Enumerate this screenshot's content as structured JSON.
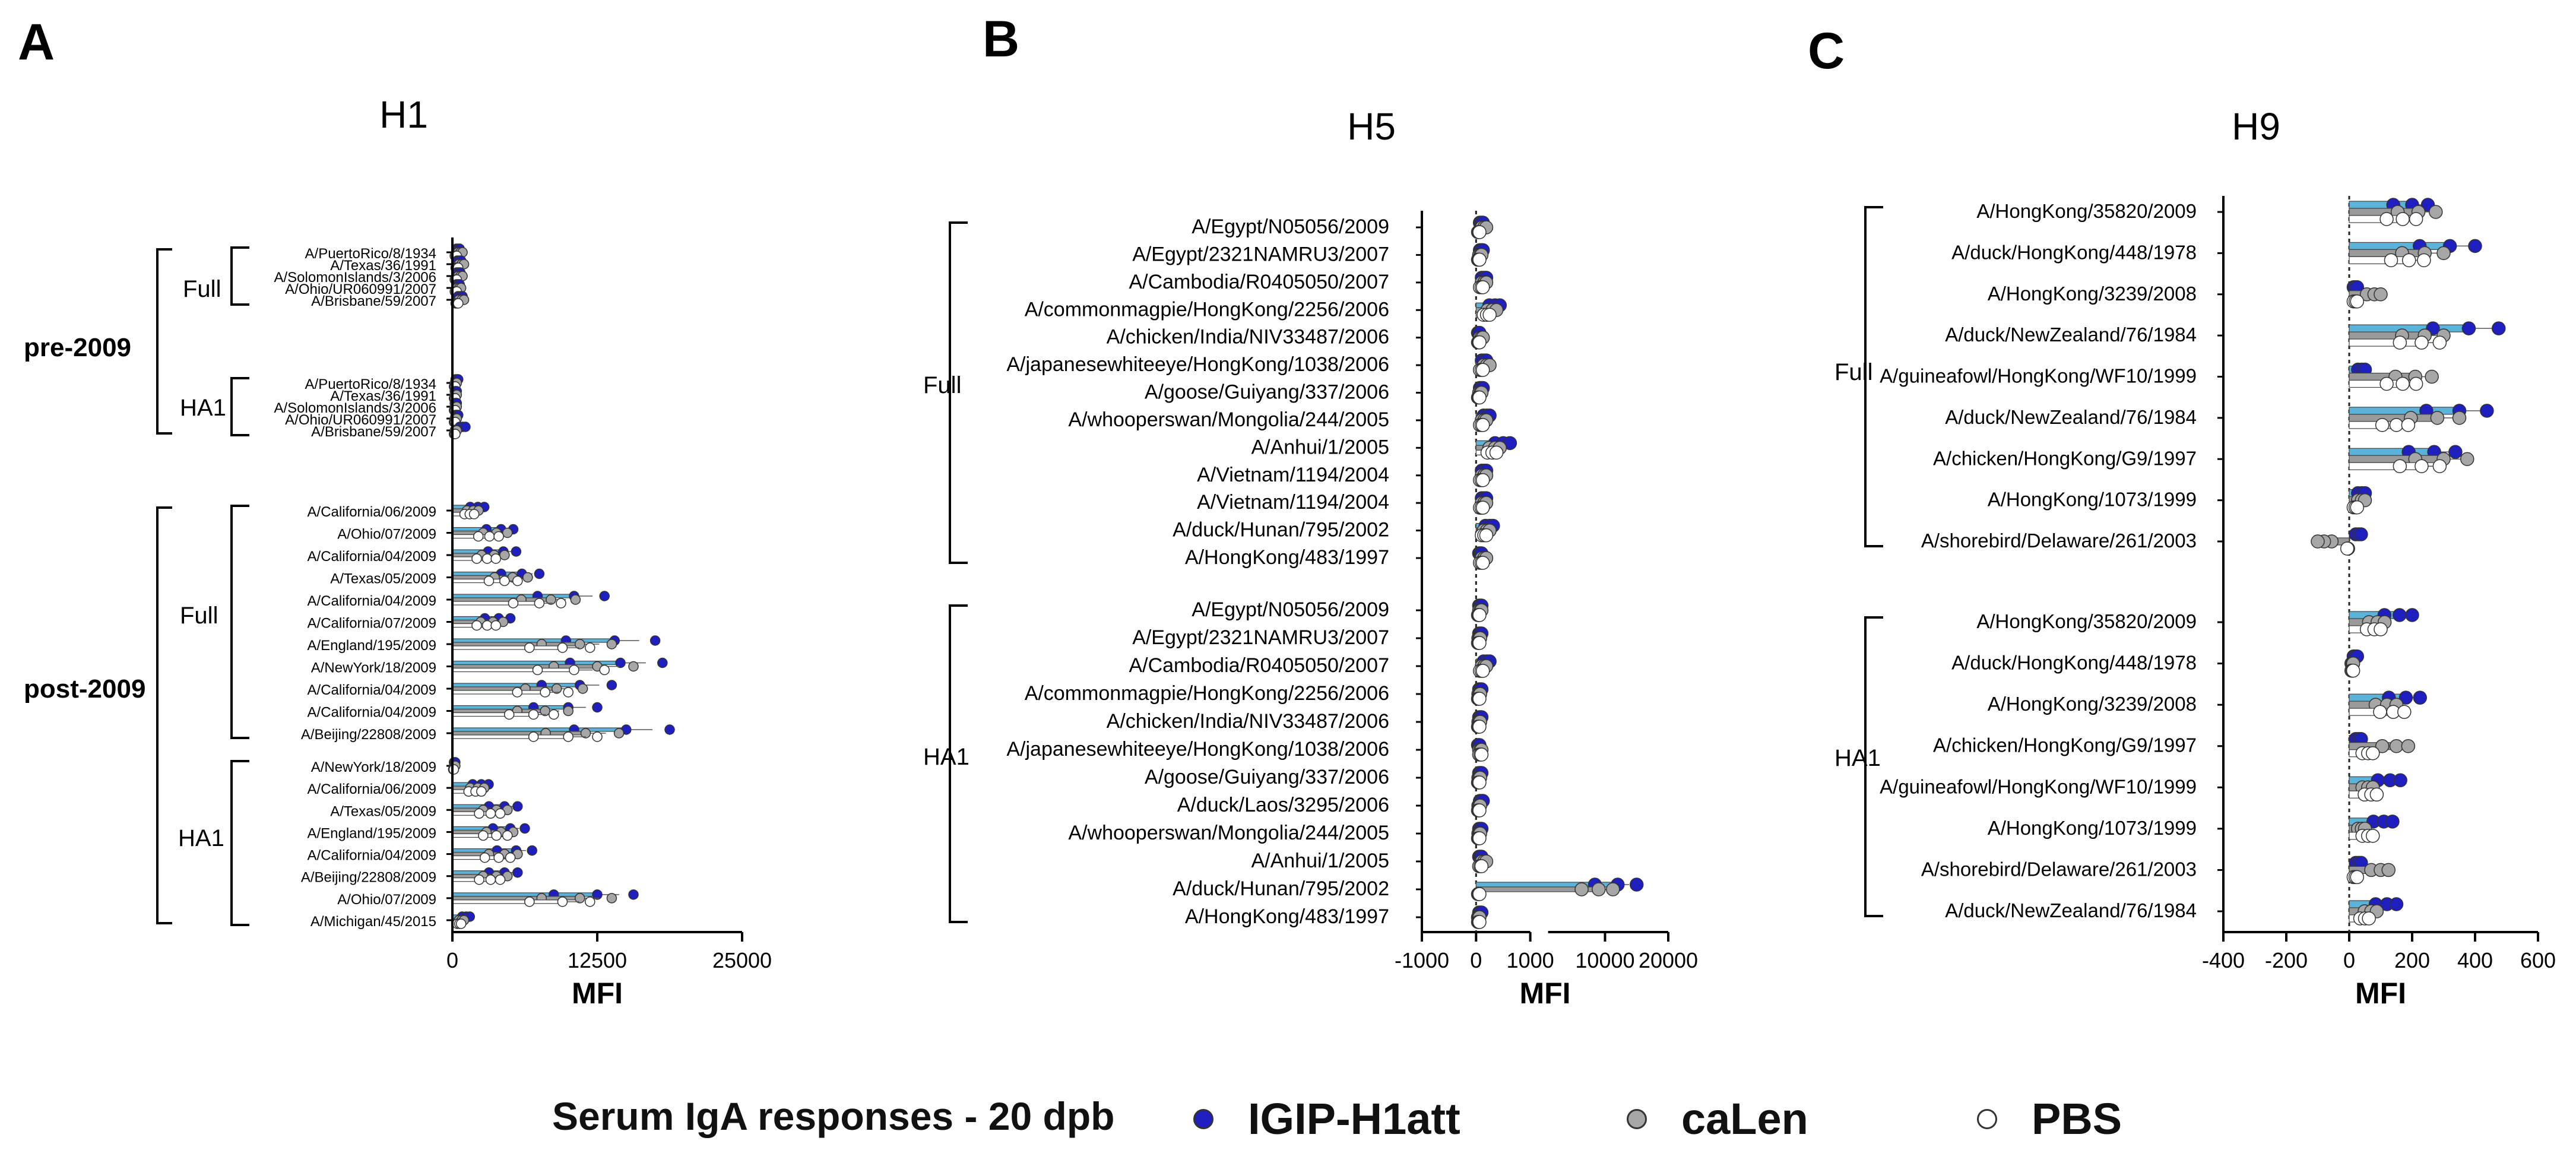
{
  "legend": {
    "title": "Serum IgA responses - 20 dpb",
    "items": [
      {
        "label": "IGIP-H1att",
        "color": "#1f1fbf"
      },
      {
        "label": "caLen",
        "color": "#a6a6a6"
      },
      {
        "label": "PBS",
        "color": "#ffffff"
      }
    ]
  },
  "colors": {
    "bar_igip": "#5bb3d9",
    "bar_calen": "#9a9a9a",
    "bar_pbs": "#ffffff",
    "dot_igip": "#1f1fbf",
    "dot_calen": "#a6a6a6",
    "dot_pbs": "#ffffff"
  },
  "chart_data": [
    {
      "panel": "A",
      "title": "H1",
      "type": "bar",
      "orientation": "horizontal",
      "xlabel": "MFI",
      "xlim": [
        0,
        25000
      ],
      "xticks": [
        "0",
        "12500",
        "25000"
      ],
      "super_groups": [
        {
          "label": "pre-2009",
          "groups": [
            0,
            1
          ]
        },
        {
          "label": "post-2009",
          "groups": [
            2,
            3
          ]
        }
      ],
      "groups": [
        {
          "label": "Full",
          "categories": [
            "A/PuertoRico/8/1934",
            "A/Texas/36/1991",
            "A/SolomonIslands/3/2006",
            "A/Ohio/UR060991/2007",
            "A/Brisbane/59/2007"
          ],
          "series": [
            {
              "name": "IGIP-H1att",
              "values": [
                500,
                600,
                550,
                500,
                700
              ]
            },
            {
              "name": "caLen",
              "values": [
                700,
                800,
                700,
                600,
                800
              ]
            },
            {
              "name": "PBS",
              "values": [
                300,
                400,
                300,
                300,
                400
              ]
            }
          ]
        },
        {
          "label": "HA1",
          "categories": [
            "A/PuertoRico/8/1934",
            "A/Texas/36/1991",
            "A/SolomonIslands/3/2006",
            "A/Ohio/UR060991/2007",
            "A/Brisbane/59/2007"
          ],
          "series": [
            {
              "name": "IGIP-H1att",
              "values": [
                400,
                300,
                300,
                400,
                900
              ]
            },
            {
              "name": "caLen",
              "values": [
                300,
                300,
                300,
                300,
                300
              ]
            },
            {
              "name": "PBS",
              "values": [
                200,
                200,
                200,
                200,
                200
              ]
            }
          ]
        },
        {
          "label": "Full",
          "categories": [
            "A/California/06/2009",
            "A/Ohio/07/2009",
            "A/California/04/2009",
            "A/Texas/05/2009",
            "A/California/04/2009",
            "A/California/07/2009",
            "A/England/195/2009",
            "A/NewYork/18/2009",
            "A/California/04/2009",
            "A/California/04/2009",
            "A/Beijing/22808/2009"
          ],
          "series": [
            {
              "name": "IGIP-H1att",
              "values": [
                2200,
                4200,
                4400,
                6000,
                10500,
                4000,
                14000,
                14500,
                11000,
                10000,
                15000
              ]
            },
            {
              "name": "caLen",
              "values": [
                1800,
                3800,
                3600,
                5200,
                8500,
                3500,
                11000,
                12500,
                9000,
                8000,
                11500
              ]
            },
            {
              "name": "PBS",
              "values": [
                1500,
                3200,
                3000,
                4500,
                7500,
                3000,
                9500,
                10500,
                8000,
                7000,
                10000
              ]
            }
          ]
        },
        {
          "label": "HA1",
          "categories": [
            "A/NewYork/18/2009",
            "A/California/06/2009",
            "A/Texas/05/2009",
            "A/England/195/2009",
            "A/California/04/2009",
            "A/Beijing/22808/2009",
            "A/Ohio/07/2009",
            "A/Michigan/45/2015"
          ],
          "series": [
            {
              "name": "IGIP-H1att",
              "values": [
                200,
                2500,
                4500,
                5000,
                5500,
                4500,
                12500,
                1200
              ]
            },
            {
              "name": "caLen",
              "values": [
                200,
                2200,
                3800,
                4200,
                4500,
                3800,
                11000,
                800
              ]
            },
            {
              "name": "PBS",
              "values": [
                100,
                2000,
                3300,
                3800,
                4000,
                3300,
                9500,
                600
              ]
            }
          ]
        }
      ]
    },
    {
      "panel": "B",
      "title": "H5",
      "type": "bar",
      "orientation": "horizontal",
      "xlabel": "MFI",
      "xlim": [
        -1000,
        20000
      ],
      "axis_break": 1000,
      "xticks": [
        "-1000",
        "0",
        "1000",
        "10000",
        "20000"
      ],
      "groups": [
        {
          "label": "Full",
          "categories": [
            "A/Egypt/N05056/2009",
            "A/Egypt/2321NAMRU3/2007",
            "A/Cambodia/R0405050/2007",
            "A/commonmagpie/HongKong/2256/2006",
            "A/chicken/India/NIV33487/2006",
            "A/japanesewhiteeye/HongKong/1038/2006",
            "A/goose/Guiyang/337/2006",
            "A/whooperswan/Mongolia/244/2005",
            "A/Anhui/1/2005",
            "A/Vietnam/1194/2004",
            "A/Vietnam/1194/2004",
            "A/duck/Hunan/795/2002",
            "A/HongKong/483/1997"
          ],
          "series": [
            {
              "name": "IGIP-H1att",
              "values": [
                100,
                100,
                150,
                350,
                50,
                150,
                100,
                200,
                500,
                150,
                150,
                250,
                80
              ]
            },
            {
              "name": "caLen",
              "values": [
                150,
                80,
                150,
                300,
                100,
                200,
                80,
                150,
                350,
                150,
                150,
                200,
                150
              ]
            },
            {
              "name": "PBS",
              "values": [
                50,
                50,
                100,
                200,
                50,
                100,
                50,
                100,
                300,
                100,
                100,
                150,
                100
              ]
            }
          ]
        },
        {
          "label": "HA1",
          "categories": [
            "A/Egypt/N05056/2009",
            "A/Egypt/2321NAMRU3/2007",
            "A/Cambodia/R0405050/2007",
            "A/commonmagpie/HongKong/2256/2006",
            "A/chicken/India/NIV33487/2006",
            "A/japanesewhiteeye/HongKong/1038/2006",
            "A/goose/Guiyang/337/2006",
            "A/duck/Laos/3295/2006",
            "A/whooperswan/Mongolia/244/2005",
            "A/Anhui/1/2005",
            "A/duck/Hunan/795/2002",
            "A/HongKong/483/1997"
          ],
          "series": [
            {
              "name": "IGIP-H1att",
              "values": [
                80,
                80,
                200,
                80,
                80,
                50,
                80,
                100,
                80,
                80,
                12000,
                80
              ]
            },
            {
              "name": "caLen",
              "values": [
                80,
                60,
                150,
                60,
                60,
                80,
                60,
                60,
                60,
                150,
                9000,
                50
              ]
            },
            {
              "name": "PBS",
              "values": [
                50,
                50,
                100,
                50,
                50,
                80,
                50,
                50,
                50,
                80,
                50,
                50
              ]
            }
          ]
        }
      ]
    },
    {
      "panel": "C",
      "title": "H9",
      "type": "bar",
      "orientation": "horizontal",
      "xlabel": "MFI",
      "xlim": [
        -400,
        600
      ],
      "xticks": [
        "-400",
        "-200",
        "0",
        "200",
        "400",
        "600"
      ],
      "groups": [
        {
          "label": "Full",
          "categories": [
            "A/HongKong/35820/2009",
            "A/duck/HongKong/448/1978",
            "A/HongKong/3239/2008",
            "A/duck/NewZealand/76/1984",
            "A/guineafowl/HongKong/WF10/1999",
            "A/duck/NewZealand/76/1984",
            "A/chicken/HongKong/G9/1997",
            "A/HongKong/1073/1999",
            "A/shorebird/Delaware/261/2003"
          ],
          "series": [
            {
              "name": "IGIP-H1att",
              "values": [
                200,
                320,
                20,
                380,
                40,
                350,
                270,
                40,
                30
              ]
            },
            {
              "name": "caLen",
              "values": [
                220,
                240,
                80,
                240,
                210,
                280,
                300,
                40,
                -80
              ]
            },
            {
              "name": "PBS",
              "values": [
                170,
                190,
                20,
                230,
                170,
                150,
                230,
                20,
                -5
              ]
            }
          ]
        },
        {
          "label": "HA1",
          "categories": [
            "A/HongKong/35820/2009",
            "A/duck/HongKong/448/1978",
            "A/HongKong/3239/2008",
            "A/chicken/HongKong/G9/1997",
            "A/guineafowl/HongKong/WF10/1999",
            "A/HongKong/1073/1999",
            "A/shorebird/Delaware/261/2003",
            "A/duck/NewZealand/76/1984"
          ],
          "series": [
            {
              "name": "IGIP-H1att",
              "values": [
                160,
                20,
                180,
                30,
                130,
                110,
                30,
                120
              ]
            },
            {
              "name": "caLen",
              "values": [
                90,
                10,
                120,
                150,
                60,
                40,
                100,
                70
              ]
            },
            {
              "name": "PBS",
              "values": [
                80,
                10,
                140,
                60,
                70,
                60,
                20,
                50
              ]
            }
          ]
        }
      ]
    }
  ]
}
